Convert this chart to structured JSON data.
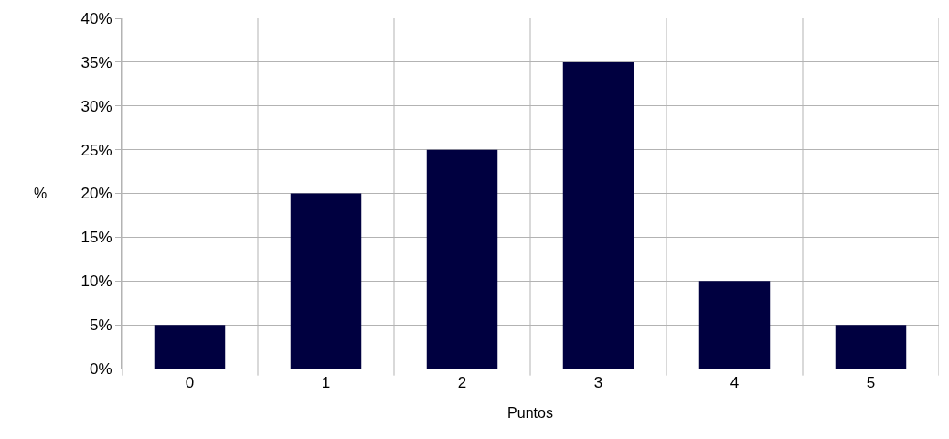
{
  "chart_data": {
    "type": "bar",
    "xlabel": "Puntos",
    "ylabel": "%",
    "categories": [
      "0",
      "1",
      "2",
      "3",
      "4",
      "5"
    ],
    "values": [
      5,
      20,
      25,
      35,
      10,
      5
    ],
    "color": "#000040",
    "ylim": [
      0,
      40
    ],
    "yticks": [
      {
        "value": 0,
        "label": "0%"
      },
      {
        "value": 5,
        "label": "5%"
      },
      {
        "value": 10,
        "label": "10%"
      },
      {
        "value": 15,
        "label": "15%"
      },
      {
        "value": 20,
        "label": "20%"
      },
      {
        "value": 25,
        "label": "25%"
      },
      {
        "value": 30,
        "label": "30%"
      },
      {
        "value": 35,
        "label": "35%"
      },
      {
        "value": 40,
        "label": "40%"
      }
    ],
    "grid": true
  }
}
